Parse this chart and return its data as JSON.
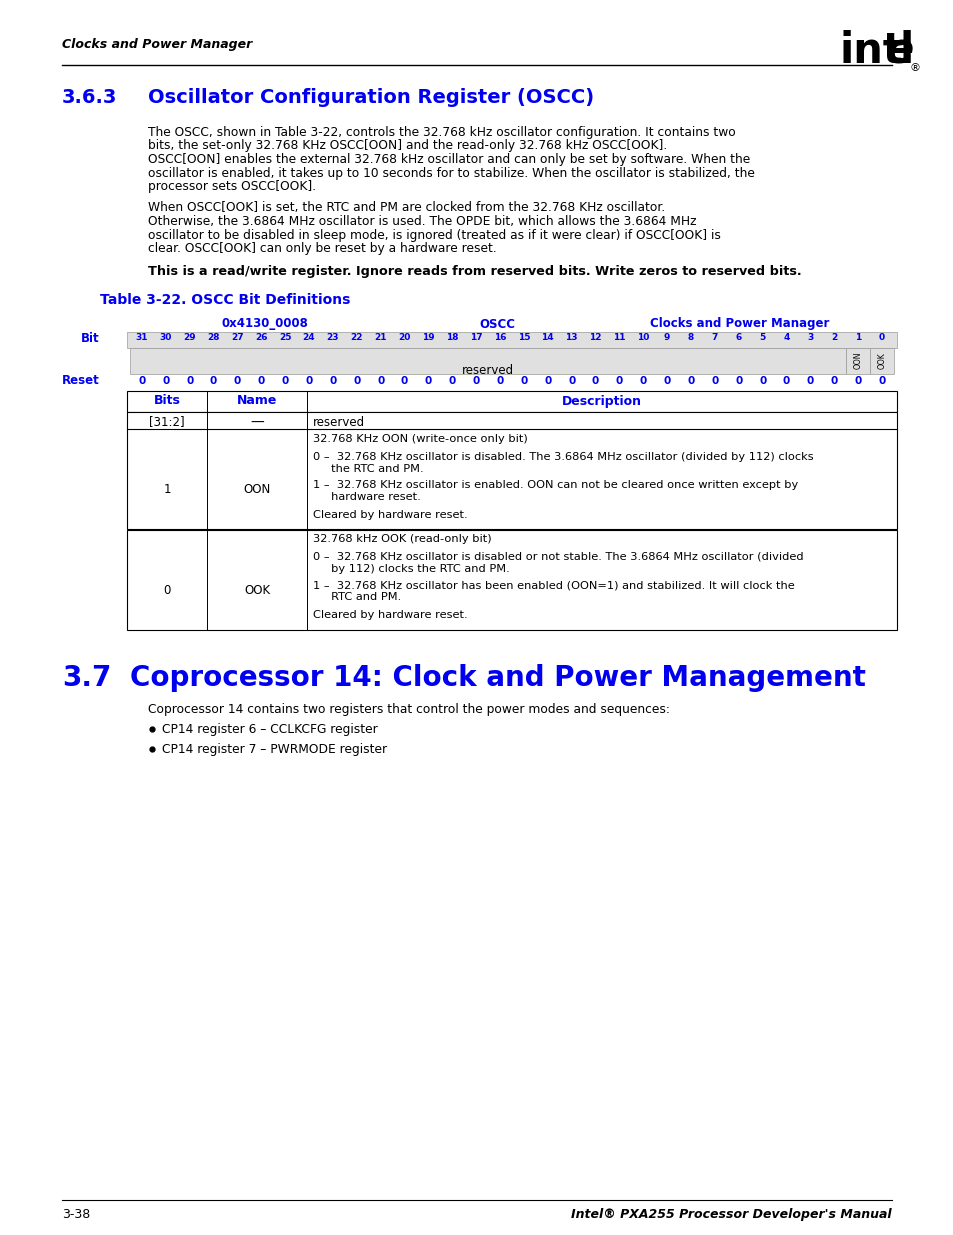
{
  "page_header_left": "Clocks and Power Manager",
  "section_363_num": "3.6.3",
  "section_363_title": "Oscillator Configuration Register (OSCC)",
  "para1_lines": [
    "The OSCC, shown in Table 3-22, controls the 32.768 kHz oscillator configuration. It contains two",
    "bits, the set-only 32.768 KHz OSCC[OON] and the read-only 32.768 kHz OSCC[OOK].",
    "OSCC[OON] enables the external 32.768 kHz oscillator and can only be set by software. When the",
    "oscillator is enabled, it takes up to 10 seconds for to stabilize. When the oscillator is stabilized, the",
    "processor sets OSCC[OOK]."
  ],
  "para2_lines": [
    "When OSCC[OOK] is set, the RTC and PM are clocked from the 32.768 KHz oscillator.",
    "Otherwise, the 3.6864 MHz oscillator is used. The OPDE bit, which allows the 3.6864 MHz",
    "oscillator to be disabled in sleep mode, is ignored (treated as if it were clear) if OSCC[OOK] is",
    "clear. OSCC[OOK] can only be reset by a hardware reset."
  ],
  "bold_note": "This is a read/write register. Ignore reads from reserved bits. Write zeros to reserved bits.",
  "table_title": "Table 3-22. OSCC Bit Definitions",
  "col1_header": "0x4130_0008",
  "col2_header": "OSCC",
  "col3_header": "Clocks and Power Manager",
  "bit_label": "Bit",
  "reset_label": "Reset",
  "bits_row": [
    "31",
    "30",
    "29",
    "28",
    "27",
    "26",
    "25",
    "24",
    "23",
    "22",
    "21",
    "20",
    "19",
    "18",
    "17",
    "16",
    "15",
    "14",
    "13",
    "12",
    "11",
    "10",
    "9",
    "8",
    "7",
    "6",
    "5",
    "4",
    "3",
    "2",
    "1",
    "0"
  ],
  "reset_row": [
    "0",
    "0",
    "0",
    "0",
    "0",
    "0",
    "0",
    "0",
    "0",
    "0",
    "0",
    "0",
    "0",
    "0",
    "0",
    "0",
    "0",
    "0",
    "0",
    "0",
    "0",
    "0",
    "0",
    "0",
    "0",
    "0",
    "0",
    "0",
    "0",
    "0",
    "0",
    "0"
  ],
  "reserved_label": "reserved",
  "table_col_headers": [
    "Bits",
    "Name",
    "Description"
  ],
  "row1_bits": "[31:2]",
  "row1_name": "—",
  "row1_desc": "reserved",
  "row2_bits": "1",
  "row2_name": "OON",
  "row2_desc_lines": [
    "32.768 KHz OON (write-once only bit)",
    "0 –  32.768 KHz oscillator is disabled. The 3.6864 MHz oscillator (divided by 112) clocks",
    "     the RTC and PM.",
    "1 –  32.768 KHz oscillator is enabled. OON can not be cleared once written except by",
    "     hardware reset.",
    "Cleared by hardware reset."
  ],
  "row2_desc_gaps": [
    0,
    1,
    0,
    1,
    0,
    1
  ],
  "row3_bits": "0",
  "row3_name": "OOK",
  "row3_desc_lines": [
    "32.768 kHz OOK (read-only bit)",
    "0 –  32.768 KHz oscillator is disabled or not stable. The 3.6864 MHz oscillator (divided",
    "     by 112) clocks the RTC and PM.",
    "1 –  32.768 KHz oscillator has been enabled (OON=1) and stabilized. It will clock the",
    "     RTC and PM.",
    "Cleared by hardware reset."
  ],
  "row3_desc_gaps": [
    0,
    1,
    0,
    1,
    0,
    1
  ],
  "section_37_num": "3.7",
  "section_37_title": "Coprocessor 14: Clock and Power Management",
  "section_37_para": "Coprocessor 14 contains two registers that control the power modes and sequences:",
  "bullet1": "CP14 register 6 – CCLKCFG register",
  "bullet2": "CP14 register 7 – PWRMODE register",
  "footer_left": "3-38",
  "footer_right": "Intel® PXA255 Processor Developer's Manual",
  "blue": "#0000EE",
  "black": "#000000",
  "lgray": "#E0E0E0",
  "mgray": "#C8C8C8"
}
